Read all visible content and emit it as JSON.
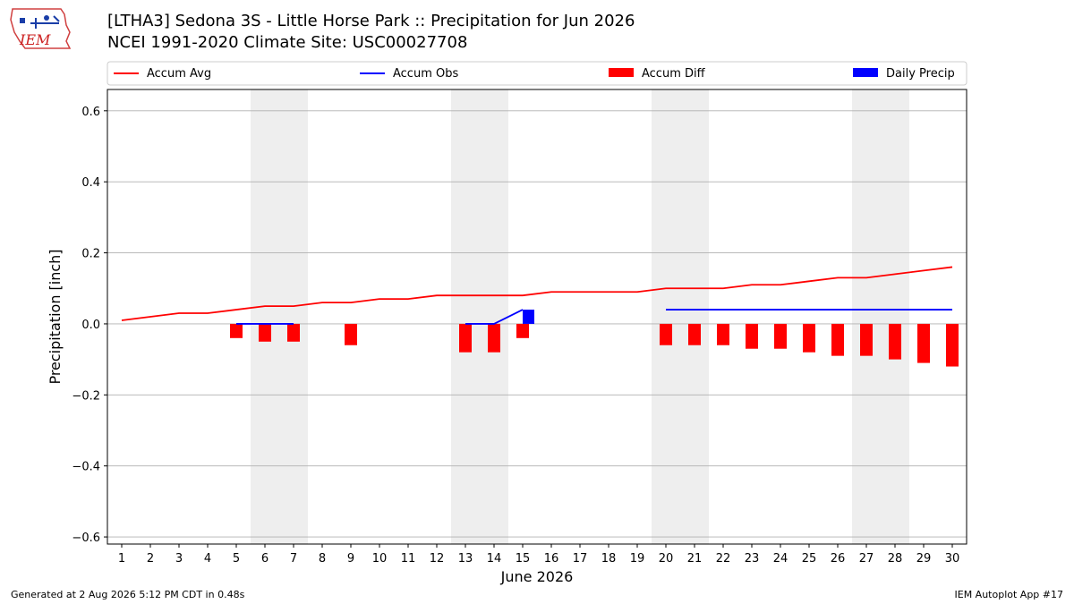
{
  "title_line_1": "[LTHA3] Sedona 3S - Little Horse Park :: Precipitation for Jun 2026",
  "title_line_2": "NCEI 1991-2020 Climate Site: USC00027708",
  "logo_text": "IEM",
  "footer_left": "Generated at 2 Aug 2026 5:12 PM CDT in 0.48s",
  "footer_right": "IEM Autoplot App #17",
  "colors": {
    "accum_avg": "#ff0000",
    "accum_obs": "#0000ff",
    "accum_diff": "#ff0000",
    "daily_precip": "#0000ff",
    "weekend_shade": "#eeeeee",
    "grid": "#b0b0b0"
  },
  "chart_data": {
    "type": "bar",
    "xlabel": "June 2026",
    "ylabel": "Precipitation [inch]",
    "ylim": [
      -0.62,
      0.66
    ],
    "xlim": [
      0.5,
      30.5
    ],
    "yticks": [
      -0.6,
      -0.4,
      -0.2,
      0.0,
      0.2,
      0.4,
      0.6
    ],
    "ytick_labels": [
      "−0.6",
      "−0.4",
      "−0.2",
      "0.0",
      "0.2",
      "0.4",
      "0.6"
    ],
    "xticks": [
      1,
      2,
      3,
      4,
      5,
      6,
      7,
      8,
      9,
      10,
      11,
      12,
      13,
      14,
      15,
      16,
      17,
      18,
      19,
      20,
      21,
      22,
      23,
      24,
      25,
      26,
      27,
      28,
      29,
      30
    ],
    "grid": "horizontal",
    "legend_position": "top",
    "shaded_days": [
      [
        6,
        7
      ],
      [
        13,
        14
      ],
      [
        20,
        21
      ],
      [
        27,
        28
      ]
    ],
    "legend": [
      "Accum Avg",
      "Accum Obs",
      "Accum Diff",
      "Daily Precip"
    ],
    "series": [
      {
        "name": "Accum Avg",
        "kind": "line",
        "x": [
          1,
          2,
          3,
          4,
          5,
          6,
          7,
          8,
          9,
          10,
          11,
          12,
          13,
          14,
          15,
          16,
          17,
          18,
          19,
          20,
          21,
          22,
          23,
          24,
          25,
          26,
          27,
          28,
          29,
          30
        ],
        "values": [
          0.01,
          0.02,
          0.03,
          0.03,
          0.04,
          0.05,
          0.05,
          0.06,
          0.06,
          0.07,
          0.07,
          0.08,
          0.08,
          0.08,
          0.08,
          0.09,
          0.09,
          0.09,
          0.09,
          0.1,
          0.1,
          0.1,
          0.11,
          0.11,
          0.12,
          0.13,
          0.13,
          0.14,
          0.15,
          0.16
        ]
      },
      {
        "name": "Accum Obs",
        "kind": "line",
        "segments": [
          {
            "x": [
              5,
              6,
              7
            ],
            "values": [
              0.0,
              0.0,
              0.0
            ]
          },
          {
            "x": [
              13,
              14,
              15
            ],
            "values": [
              0.0,
              0.0,
              0.04
            ]
          },
          {
            "x": [
              20,
              21,
              22,
              23,
              24,
              25,
              26,
              27,
              28,
              29,
              30
            ],
            "values": [
              0.04,
              0.04,
              0.04,
              0.04,
              0.04,
              0.04,
              0.04,
              0.04,
              0.04,
              0.04,
              0.04
            ]
          }
        ]
      },
      {
        "name": "Accum Diff",
        "kind": "bar",
        "x": [
          5,
          6,
          7,
          9,
          13,
          14,
          15,
          20,
          21,
          22,
          23,
          24,
          25,
          26,
          27,
          28,
          29,
          30
        ],
        "values": [
          -0.04,
          -0.05,
          -0.05,
          -0.06,
          -0.08,
          -0.08,
          -0.04,
          -0.06,
          -0.06,
          -0.06,
          -0.07,
          -0.07,
          -0.08,
          -0.09,
          -0.09,
          -0.1,
          -0.11,
          -0.12
        ]
      },
      {
        "name": "Daily Precip",
        "kind": "bar",
        "x": [
          15
        ],
        "values": [
          0.04
        ]
      }
    ]
  }
}
